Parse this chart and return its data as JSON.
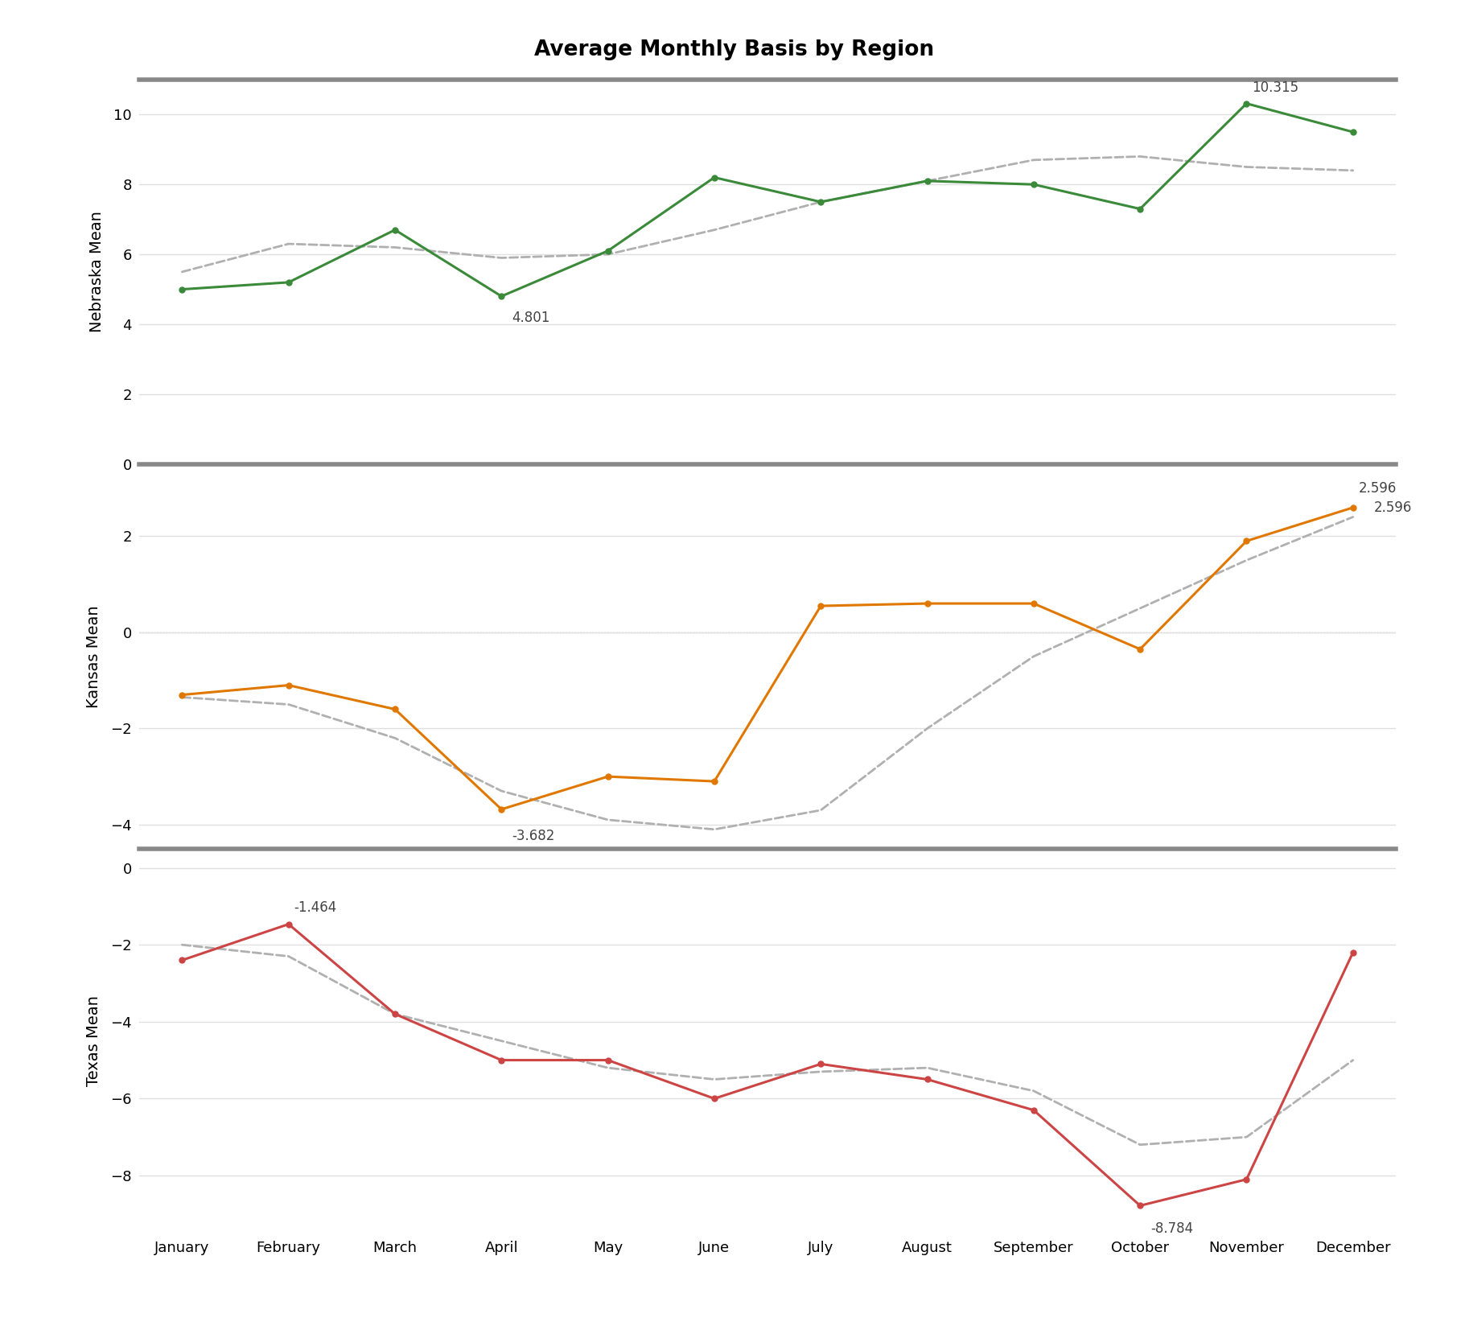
{
  "title": "Average Monthly Basis by Region",
  "months": [
    "January",
    "February",
    "March",
    "April",
    "May",
    "June",
    "July",
    "August",
    "September",
    "October",
    "November",
    "December"
  ],
  "nebraska": {
    "mean": [
      5.0,
      5.2,
      6.7,
      4.801,
      6.1,
      8.2,
      7.5,
      8.1,
      8.0,
      7.3,
      10.315,
      9.5
    ],
    "dashed": [
      5.5,
      6.3,
      6.2,
      5.9,
      6.0,
      6.7,
      7.5,
      8.1,
      8.7,
      8.8,
      8.5,
      8.4
    ],
    "color": "#3a8a3a",
    "ylabel": "Nebraska Mean",
    "ylim": [
      0,
      11
    ],
    "yticks": [
      0,
      2,
      4,
      6,
      8,
      10
    ],
    "annot_min_idx": 3,
    "annot_min_val": "4.801",
    "annot_max_idx": 10,
    "annot_max_val": "10.315"
  },
  "kansas": {
    "mean": [
      -1.3,
      -1.1,
      -1.6,
      -3.682,
      -3.0,
      -3.1,
      0.55,
      0.6,
      0.6,
      -0.35,
      1.9,
      2.596
    ],
    "dashed": [
      -1.35,
      -1.5,
      -2.2,
      -3.3,
      -3.9,
      -4.1,
      -3.7,
      -2.0,
      -0.5,
      0.5,
      1.5,
      2.4
    ],
    "color": "#e07800",
    "ylabel": "Kansas Mean",
    "ylim": [
      -4.5,
      3.5
    ],
    "yticks": [
      -4,
      -2,
      0,
      2
    ],
    "annot_min_idx": 3,
    "annot_min_val": "-3.682",
    "annot_max_idx": 11,
    "annot_max_val": "2.596",
    "zero_line": true
  },
  "texas": {
    "mean": [
      -2.4,
      -1.464,
      -3.8,
      -5.0,
      -5.0,
      -6.0,
      -5.1,
      -5.5,
      -6.3,
      -8.784,
      -8.1,
      -2.2
    ],
    "dashed": [
      -2.0,
      -2.3,
      -3.8,
      -4.5,
      -5.2,
      -5.5,
      -5.3,
      -5.2,
      -5.8,
      -7.2,
      -7.0,
      -5.0
    ],
    "color": "#cc4444",
    "ylabel": "Texas Mean",
    "ylim": [
      -9.5,
      0.5
    ],
    "yticks": [
      -8,
      -6,
      -4,
      -2,
      0
    ],
    "annot_min_idx": 9,
    "annot_min_val": "-8.784",
    "annot_max_idx": 1,
    "annot_max_val": "-1.464",
    "zero_line": false
  },
  "dashed_color": "#b0b0b0",
  "background_color": "#ffffff",
  "grid_color": "#e0e0e0",
  "separator_color": "#888888",
  "title_fontsize": 19,
  "label_fontsize": 14,
  "tick_fontsize": 13,
  "annot_fontsize": 12
}
